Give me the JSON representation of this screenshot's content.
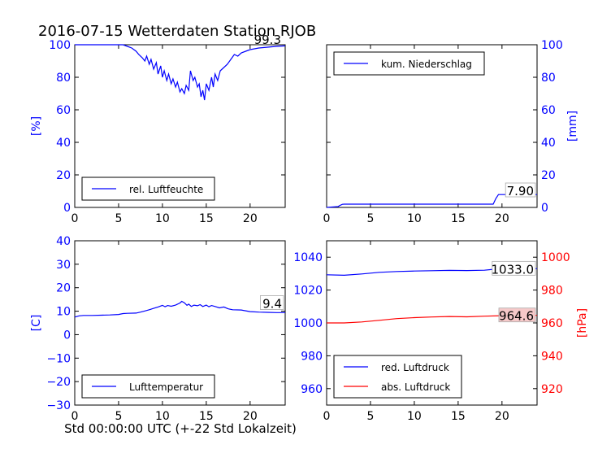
{
  "title": "2016-07-15 Wetterdaten Station RJOB",
  "footer_xlabel": "Std 00:00:00 UTC (+-22 Std Lokalzeit)",
  "colors": {
    "blue": "#0000ff",
    "red": "#ff0000",
    "annot_bg": "#f6c9c9"
  },
  "chart_data": [
    {
      "id": "humidity",
      "type": "line",
      "xlim": [
        0,
        24
      ],
      "ylim": [
        0,
        100
      ],
      "xticks": [
        "0",
        "5",
        "10",
        "15",
        "20"
      ],
      "yticks": [
        "0",
        "20",
        "40",
        "60",
        "80",
        "100"
      ],
      "y_axis_side": "left",
      "ylabel": "[%]",
      "legend": "bottom-left",
      "annotation": "99.3",
      "series": [
        {
          "name": "rel. Luftfeuchte",
          "color": "#0000ff",
          "x": [
            0,
            5.5,
            6,
            6.5,
            7,
            7.3,
            7.7,
            8,
            8.2,
            8.5,
            8.7,
            9,
            9.3,
            9.5,
            9.8,
            10,
            10.2,
            10.5,
            10.7,
            11,
            11.2,
            11.5,
            11.7,
            12,
            12.2,
            12.5,
            12.7,
            13,
            13.2,
            13.5,
            13.7,
            14,
            14.2,
            14.4,
            14.6,
            14.8,
            15,
            15.3,
            15.6,
            15.8,
            16,
            16.3,
            16.6,
            17,
            17.4,
            17.8,
            18.2,
            18.6,
            19,
            19.5,
            20,
            21,
            22,
            23,
            24
          ],
          "y": [
            100,
            100,
            99,
            98,
            96,
            94,
            92,
            90,
            93,
            88,
            91,
            85,
            89,
            82,
            87,
            80,
            84,
            78,
            82,
            76,
            79,
            74,
            77,
            71,
            73,
            70,
            75,
            72,
            84,
            78,
            80,
            74,
            76,
            68,
            72,
            66,
            76,
            72,
            80,
            74,
            82,
            78,
            84,
            86,
            88,
            91,
            94,
            93,
            95,
            96,
            97,
            98,
            98.5,
            99,
            99.3
          ]
        }
      ]
    },
    {
      "id": "precipitation",
      "type": "line",
      "xlim": [
        0,
        24
      ],
      "ylim": [
        0,
        100
      ],
      "xticks": [
        "0",
        "5",
        "10",
        "15",
        "20"
      ],
      "yticks": [
        "0",
        "20",
        "40",
        "60",
        "80",
        "100"
      ],
      "y_axis_side": "right",
      "ylabel": "[mm]",
      "legend": "top-left",
      "annotation": "7.90",
      "series": [
        {
          "name": "kum. Niederschlag",
          "color": "#0000ff",
          "x": [
            0,
            1.3,
            1.5,
            1.8,
            2,
            19,
            19.3,
            19.6,
            24
          ],
          "y": [
            0,
            0.5,
            1.2,
            1.9,
            2.0,
            2.0,
            5.5,
            7.9,
            7.9
          ]
        }
      ]
    },
    {
      "id": "temperature",
      "type": "line",
      "xlim": [
        0,
        24
      ],
      "ylim": [
        -30,
        40
      ],
      "xticks": [
        "0",
        "5",
        "10",
        "15",
        "20"
      ],
      "yticks": [
        "−30",
        "−20",
        "−10",
        "0",
        "10",
        "20",
        "30",
        "40"
      ],
      "y_axis_side": "left",
      "ylabel": "[C]",
      "legend": "bottom-left",
      "annotation": "9.4",
      "series": [
        {
          "name": "Lufttemperatur",
          "color": "#0000ff",
          "x": [
            0,
            0.5,
            1,
            2,
            3,
            4,
            5,
            5.5,
            6,
            7,
            7.5,
            8,
            8.5,
            9,
            9.5,
            10,
            10.3,
            10.6,
            11,
            11.5,
            12,
            12.2,
            12.5,
            12.8,
            13,
            13.3,
            13.6,
            14,
            14.3,
            14.6,
            15,
            15.3,
            15.6,
            16,
            16.5,
            17,
            17.5,
            18,
            19,
            20,
            21,
            22,
            23,
            24
          ],
          "y": [
            7.5,
            8.0,
            8.2,
            8.2,
            8.3,
            8.4,
            8.6,
            9.0,
            9.1,
            9.2,
            9.6,
            10.1,
            10.6,
            11.2,
            11.8,
            12.5,
            11.9,
            12.4,
            12.1,
            12.6,
            13.5,
            14.2,
            13.6,
            12.5,
            13.0,
            12.0,
            12.6,
            12.3,
            12.8,
            12.0,
            12.6,
            11.9,
            12.4,
            12.0,
            11.4,
            11.8,
            11.0,
            10.6,
            10.5,
            9.8,
            9.6,
            9.5,
            9.4,
            9.4
          ]
        }
      ]
    },
    {
      "id": "pressure",
      "type": "line",
      "xlim": [
        0,
        24
      ],
      "ylim": [
        950,
        1050
      ],
      "y2lim": [
        910,
        1010
      ],
      "xticks": [
        "0",
        "5",
        "10",
        "15",
        "20"
      ],
      "yticks": [
        "960",
        "980",
        "1000",
        "1020",
        "1040"
      ],
      "y2ticks": [
        "920",
        "940",
        "960",
        "980",
        "1000"
      ],
      "y_axis_side": "left",
      "y2label": "[hPa]",
      "legend": "bottom-left",
      "annotation": "1033.0",
      "annotation2": "964.6",
      "series": [
        {
          "name": "red. Luftdruck",
          "color": "#0000ff",
          "axis": "left",
          "x": [
            0,
            2,
            4,
            5,
            6,
            8,
            10,
            12,
            14,
            16,
            18,
            19,
            20,
            22,
            24
          ],
          "y": [
            1029.3,
            1029.0,
            1029.8,
            1030.3,
            1030.8,
            1031.3,
            1031.6,
            1031.8,
            1032.0,
            1031.9,
            1032.1,
            1032.6,
            1032.9,
            1033.0,
            1033.0
          ]
        },
        {
          "name": "abs. Luftdruck",
          "color": "#ff0000",
          "axis": "right",
          "x": [
            0,
            2,
            4,
            6,
            8,
            10,
            12,
            14,
            16,
            18,
            20,
            22,
            24
          ],
          "y": [
            960.0,
            960.0,
            960.6,
            961.6,
            962.6,
            963.2,
            963.6,
            963.9,
            963.7,
            964.1,
            964.4,
            964.6,
            964.6
          ]
        }
      ]
    }
  ]
}
